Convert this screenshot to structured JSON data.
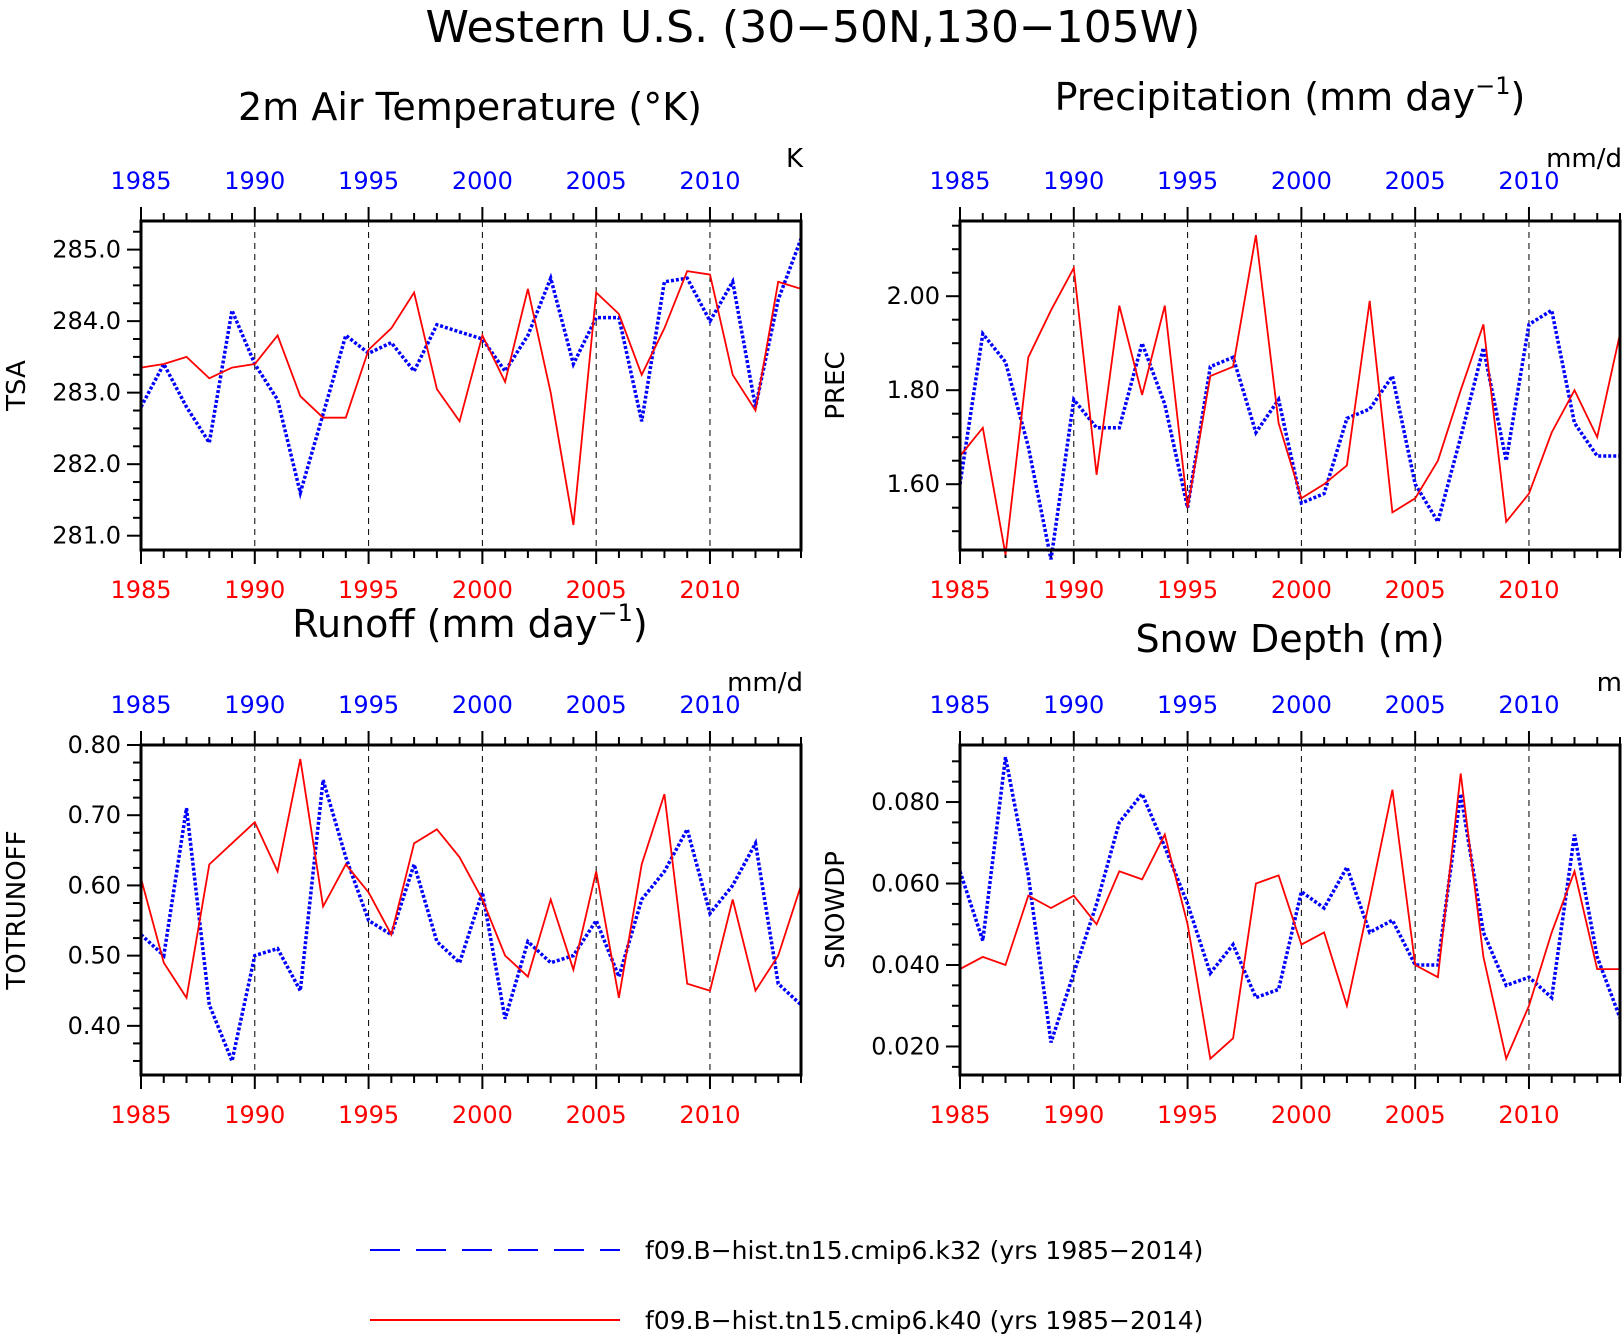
{
  "title": "Western U.S. (30−50N,130−105W)",
  "colors": {
    "series1": "#0000ff",
    "series2": "#ff0000",
    "frame": "#000000"
  },
  "legend": {
    "items": [
      {
        "label": "f09.B−hist.tn15.cmip6.k32 (yrs 1985−2014)",
        "color": "#0000ff",
        "style": "dashed"
      },
      {
        "label": "f09.B−hist.tn15.cmip6.k40 (yrs 1985−2014)",
        "color": "#ff0000",
        "style": "solid"
      }
    ]
  },
  "chart_data": [
    {
      "type": "line",
      "title": "2m Air Temperature (°K)",
      "ylabel": "TSA",
      "units": "K",
      "x": [
        1985,
        1986,
        1987,
        1988,
        1989,
        1990,
        1991,
        1992,
        1993,
        1994,
        1995,
        1996,
        1997,
        1998,
        1999,
        2000,
        2001,
        2002,
        2003,
        2004,
        2005,
        2006,
        2007,
        2008,
        2009,
        2010,
        2011,
        2012,
        2013,
        2014
      ],
      "xlim": [
        1985,
        2014
      ],
      "xticks": [
        "1985",
        "1990",
        "1995",
        "2000",
        "2005",
        "2010"
      ],
      "ylim": [
        280.8,
        285.4
      ],
      "yticks": [
        "281.0",
        "282.0",
        "283.0",
        "284.0",
        "285.0"
      ],
      "series": [
        {
          "color": "#0000ff",
          "style": "dashed",
          "values": [
            282.8,
            283.4,
            282.8,
            282.3,
            284.15,
            283.4,
            282.9,
            281.6,
            282.7,
            283.8,
            283.55,
            283.7,
            283.3,
            283.95,
            283.85,
            283.75,
            283.3,
            283.8,
            284.6,
            283.4,
            284.05,
            284.05,
            282.6,
            284.55,
            284.6,
            284.0,
            284.55,
            282.8,
            284.3,
            285.15
          ]
        },
        {
          "color": "#ff0000",
          "style": "solid",
          "values": [
            283.35,
            283.4,
            283.5,
            283.2,
            283.35,
            283.4,
            283.8,
            282.95,
            282.65,
            282.65,
            283.6,
            283.9,
            284.4,
            283.05,
            282.6,
            283.8,
            283.15,
            284.45,
            283.0,
            281.15,
            284.4,
            284.1,
            283.25,
            283.9,
            284.7,
            284.65,
            283.25,
            282.75,
            284.55,
            284.45
          ]
        }
      ]
    },
    {
      "type": "line",
      "title": "Precipitation (mm day",
      "title_sup": "−1",
      "title_end": ")",
      "ylabel": "PREC",
      "units": "mm/d",
      "x": [
        1985,
        1986,
        1987,
        1988,
        1989,
        1990,
        1991,
        1992,
        1993,
        1994,
        1995,
        1996,
        1997,
        1998,
        1999,
        2000,
        2001,
        2002,
        2003,
        2004,
        2005,
        2006,
        2007,
        2008,
        2009,
        2010,
        2011,
        2012,
        2013,
        2014
      ],
      "xlim": [
        1985,
        2014
      ],
      "xticks": [
        "1985",
        "1990",
        "1995",
        "2000",
        "2005",
        "2010"
      ],
      "ylim": [
        1.46,
        2.16
      ],
      "yticks": [
        "1.60",
        "1.80",
        "2.00"
      ],
      "series": [
        {
          "color": "#0000ff",
          "style": "dashed",
          "values": [
            1.6,
            1.92,
            1.86,
            1.68,
            1.44,
            1.78,
            1.72,
            1.72,
            1.9,
            1.77,
            1.55,
            1.85,
            1.87,
            1.71,
            1.78,
            1.56,
            1.58,
            1.74,
            1.76,
            1.83,
            1.6,
            1.52,
            1.7,
            1.89,
            1.65,
            1.94,
            1.97,
            1.73,
            1.66,
            1.66
          ]
        },
        {
          "color": "#ff0000",
          "style": "solid",
          "values": [
            1.66,
            1.72,
            1.45,
            1.87,
            1.97,
            2.06,
            1.62,
            1.98,
            1.79,
            1.98,
            1.55,
            1.83,
            1.85,
            2.13,
            1.73,
            1.57,
            1.6,
            1.64,
            1.99,
            1.54,
            1.57,
            1.65,
            1.8,
            1.94,
            1.52,
            1.58,
            1.71,
            1.8,
            1.7,
            1.92
          ]
        }
      ]
    },
    {
      "type": "line",
      "title": "Runoff (mm day",
      "title_sup": "−1",
      "title_end": ")",
      "ylabel": "TOTRUNOFF",
      "units": "mm/d",
      "x": [
        1985,
        1986,
        1987,
        1988,
        1989,
        1990,
        1991,
        1992,
        1993,
        1994,
        1995,
        1996,
        1997,
        1998,
        1999,
        2000,
        2001,
        2002,
        2003,
        2004,
        2005,
        2006,
        2007,
        2008,
        2009,
        2010,
        2011,
        2012,
        2013,
        2014
      ],
      "xlim": [
        1985,
        2014
      ],
      "xticks": [
        "1985",
        "1990",
        "1995",
        "2000",
        "2005",
        "2010"
      ],
      "ylim": [
        0.33,
        0.8
      ],
      "yticks": [
        "0.40",
        "0.50",
        "0.60",
        "0.70",
        "0.80"
      ],
      "series": [
        {
          "color": "#0000ff",
          "style": "dashed",
          "values": [
            0.53,
            0.5,
            0.71,
            0.43,
            0.35,
            0.5,
            0.51,
            0.45,
            0.75,
            0.64,
            0.55,
            0.53,
            0.63,
            0.52,
            0.49,
            0.59,
            0.41,
            0.52,
            0.49,
            0.5,
            0.55,
            0.47,
            0.58,
            0.62,
            0.68,
            0.56,
            0.6,
            0.66,
            0.46,
            0.43
          ]
        },
        {
          "color": "#ff0000",
          "style": "solid",
          "values": [
            0.61,
            0.49,
            0.44,
            0.63,
            0.66,
            0.69,
            0.62,
            0.78,
            0.57,
            0.63,
            0.59,
            0.53,
            0.66,
            0.68,
            0.64,
            0.58,
            0.5,
            0.47,
            0.58,
            0.48,
            0.62,
            0.44,
            0.63,
            0.73,
            0.46,
            0.45,
            0.58,
            0.45,
            0.5,
            0.6
          ]
        }
      ]
    },
    {
      "type": "line",
      "title": "Snow Depth (m)",
      "ylabel": "SNOWDP",
      "units": "m",
      "x": [
        1985,
        1986,
        1987,
        1988,
        1989,
        1990,
        1991,
        1992,
        1993,
        1994,
        1995,
        1996,
        1997,
        1998,
        1999,
        2000,
        2001,
        2002,
        2003,
        2004,
        2005,
        2006,
        2007,
        2008,
        2009,
        2010,
        2011,
        2012,
        2013,
        2014
      ],
      "xlim": [
        1985,
        2014
      ],
      "xticks": [
        "1985",
        "1990",
        "1995",
        "2000",
        "2005",
        "2010"
      ],
      "ylim": [
        0.013,
        0.094
      ],
      "yticks": [
        "0.020",
        "0.040",
        "0.060",
        "0.080"
      ],
      "series": [
        {
          "color": "#0000ff",
          "style": "dashed",
          "values": [
            0.063,
            0.046,
            0.091,
            0.062,
            0.021,
            0.038,
            0.055,
            0.075,
            0.082,
            0.069,
            0.055,
            0.038,
            0.045,
            0.032,
            0.034,
            0.058,
            0.054,
            0.064,
            0.048,
            0.051,
            0.04,
            0.04,
            0.082,
            0.048,
            0.035,
            0.037,
            0.032,
            0.072,
            0.042,
            0.027
          ]
        },
        {
          "color": "#ff0000",
          "style": "solid",
          "values": [
            0.039,
            0.042,
            0.04,
            0.057,
            0.054,
            0.057,
            0.05,
            0.063,
            0.061,
            0.072,
            0.05,
            0.017,
            0.022,
            0.06,
            0.062,
            0.045,
            0.048,
            0.03,
            0.056,
            0.083,
            0.04,
            0.037,
            0.087,
            0.042,
            0.017,
            0.03,
            0.048,
            0.063,
            0.039,
            0.039
          ]
        }
      ]
    }
  ]
}
